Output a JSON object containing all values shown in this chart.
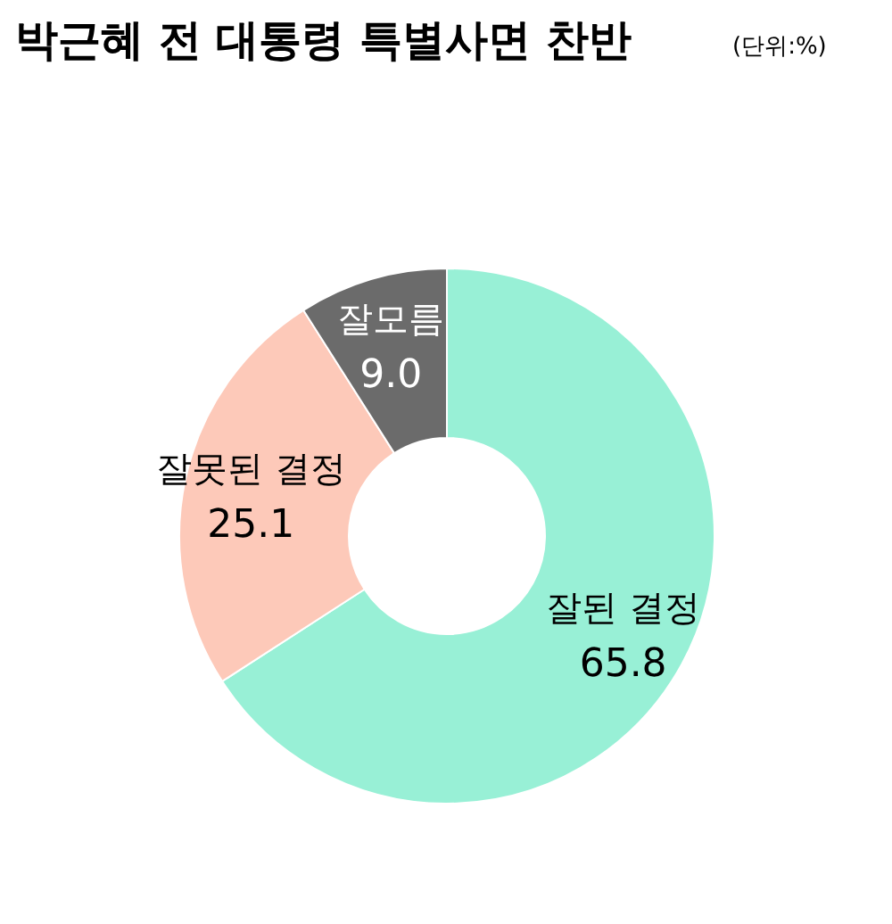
{
  "chart_data": {
    "type": "donut",
    "title": "박근혜 전 대통령 특별사면 찬반",
    "subtitle": "(단위:%)",
    "categories": [
      "잘된 결정",
      "잘못된 결정",
      "잘모름"
    ],
    "values": [
      65.8,
      25.1,
      9.0
    ],
    "value_labels": [
      "65.8",
      "25.1",
      "9.0"
    ],
    "colors": [
      "#98f0d6",
      "#fdc9b9",
      "#6b6b6b"
    ]
  }
}
